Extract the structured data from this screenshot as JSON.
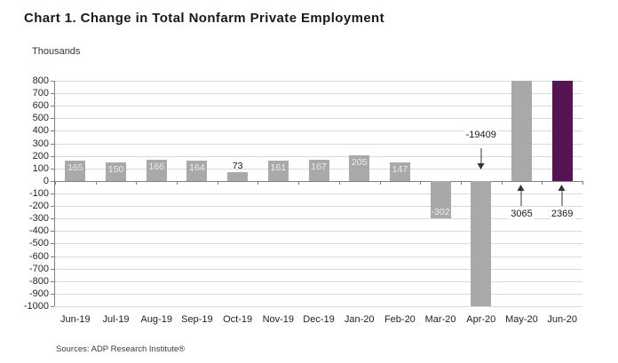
{
  "title": "Chart 1. Change in Total Nonfarm Private Employment",
  "units_label": "Thousands",
  "source": "Sources: ADP Research Institute®",
  "chart_data": {
    "type": "bar",
    "title": "Chart 1. Change in Total Nonfarm Private Employment",
    "ylabel": "Thousands",
    "xlabel": "",
    "grid": true,
    "legend": "none",
    "ylim": [
      -1000,
      800
    ],
    "ytick_step": 100,
    "categories": [
      "Jun-19",
      "Jul-19",
      "Aug-19",
      "Sep-19",
      "Oct-19",
      "Nov-19",
      "Dec-19",
      "Jan-20",
      "Feb-20",
      "Mar-20",
      "Apr-20",
      "May-20",
      "Jun-20"
    ],
    "values": [
      165,
      150,
      166,
      164,
      73,
      161,
      167,
      205,
      147,
      -302,
      -19409,
      3065,
      2369
    ],
    "bar_labels": [
      "165",
      "150",
      "166",
      "164",
      "73",
      "161",
      "167",
      "205",
      "147",
      "-302",
      null,
      null,
      null
    ],
    "annotations": [
      {
        "category": "Apr-20",
        "text": "-19409",
        "arrow": "down"
      },
      {
        "category": "May-20",
        "text": "3065",
        "arrow": "up"
      },
      {
        "category": "Jun-20",
        "text": "2369",
        "arrow": "up"
      }
    ],
    "highlight_category": "Jun-20",
    "colors": {
      "bar": "#a9a9a9",
      "highlight_bar": "#551453",
      "gridline": "#d9d9d9",
      "axis": "#7f7f7f",
      "in_bar_label": "#ececec",
      "outside_label": "#1a1a1a",
      "annotation_arrow": "#333333"
    }
  }
}
